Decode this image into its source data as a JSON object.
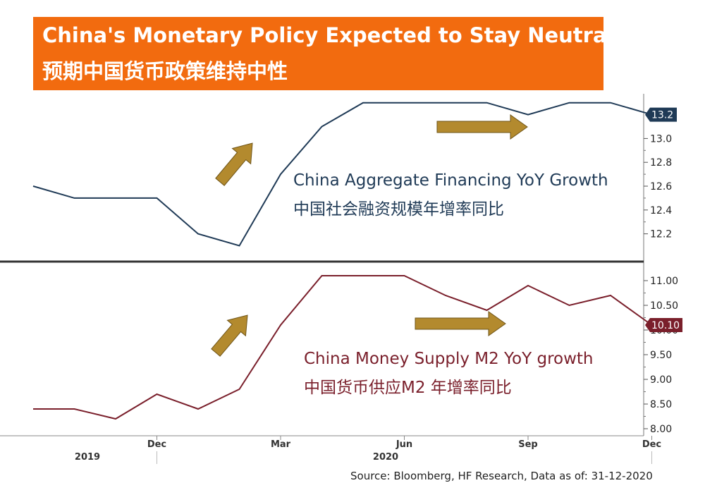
{
  "title": {
    "en": "China's Monetary Policy Expected to Stay Neutral",
    "cn": "预期中国货币政策维持中性"
  },
  "colors": {
    "title_bg": "#F26B0F",
    "financing": "#1F3A56",
    "m2": "#7A1F2B",
    "arrow": "#B38A2E"
  },
  "chart_data": [
    {
      "type": "line",
      "name_en": "China Aggregate Financing YoY Growth",
      "name_cn": "中国社会融资规模年增率同比",
      "x": [
        "2019-09",
        "2019-10",
        "2019-11",
        "2019-12",
        "2020-01",
        "2020-02",
        "2020-03",
        "2020-04",
        "2020-05",
        "2020-06",
        "2020-07",
        "2020-08",
        "2020-09",
        "2020-10",
        "2020-11",
        "2020-12"
      ],
      "values": [
        12.6,
        12.5,
        12.5,
        12.5,
        12.2,
        12.1,
        12.7,
        13.1,
        13.3,
        13.3,
        13.3,
        13.3,
        13.2,
        13.3,
        13.3,
        13.2
      ],
      "ylim": [
        12.0,
        13.4
      ],
      "yticks": [
        "13.0",
        "12.8",
        "12.6",
        "12.4",
        "12.2"
      ],
      "last_value_label": "13.2"
    },
    {
      "type": "line",
      "name_en": "China Money Supply M2 YoY growth",
      "name_cn": "中国货币供应M2 年增率同比",
      "x": [
        "2019-09",
        "2019-10",
        "2019-11",
        "2019-12",
        "2020-01",
        "2020-02",
        "2020-03",
        "2020-04",
        "2020-05",
        "2020-06",
        "2020-07",
        "2020-08",
        "2020-09",
        "2020-10",
        "2020-11",
        "2020-12"
      ],
      "values": [
        8.4,
        8.4,
        8.2,
        8.7,
        8.4,
        8.8,
        10.1,
        11.1,
        11.1,
        11.1,
        10.7,
        10.4,
        10.9,
        10.5,
        10.7,
        10.1
      ],
      "ylim": [
        7.95,
        11.3
      ],
      "yticks": [
        "11.00",
        "10.50",
        "10.00",
        "9.50",
        "9.00",
        "8.50",
        "8.00"
      ],
      "last_value_label": "10.10"
    }
  ],
  "x_axis": {
    "month_ticks": [
      "Dec",
      "Mar",
      "Jun",
      "Sep",
      "Dec"
    ],
    "year_labels": [
      "2019",
      "2020"
    ]
  },
  "source": "Source: Bloomberg, HF Research, Data as of: 31-12-2020"
}
